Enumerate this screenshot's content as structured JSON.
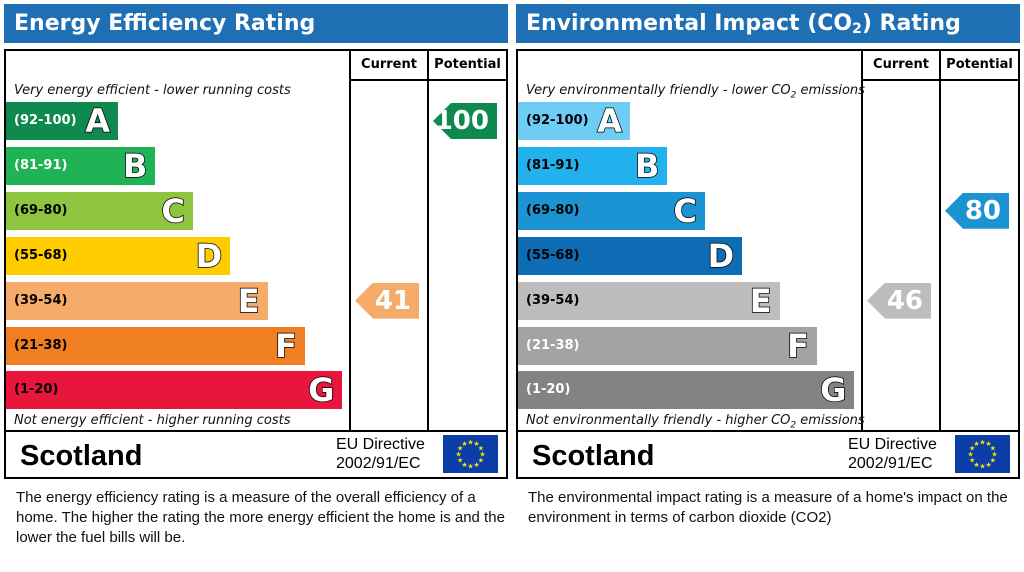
{
  "panels": [
    {
      "title_main": "Energy Efficiency Rating",
      "title_sub": "",
      "title_suffix": "",
      "headers": {
        "current": "Current",
        "potential": "Potential"
      },
      "top_note": "Very energy efficient - lower running costs",
      "bottom_note": "Not energy efficient - higher running costs",
      "country": "Scotland",
      "directive_line1": "EU Directive",
      "directive_line2": "2002/91/EC",
      "description": "The energy efficiency rating is a measure of the overall efficiency of a home.  The higher the rating the more energy efficient the home is and the lower the fuel bills will be."
    },
    {
      "title_main": "Environmental Impact (CO",
      "title_sub": "2",
      "title_suffix": ") Rating",
      "headers": {
        "current": "Current",
        "potential": "Potential"
      },
      "top_note_main": "Very environmentally friendly - lower CO",
      "top_note_sub": "2",
      "top_note_suffix": " emissions",
      "bottom_note_main": "Not environmentally friendly - higher CO",
      "bottom_note_sub": "2",
      "bottom_note_suffix": " emissions",
      "country": "Scotland",
      "directive_line1": "EU Directive",
      "directive_line2": "2002/91/EC",
      "description": "The environmental impact rating is a measure of a home's impact on the environment in terms of carbon dioxide (CO2)"
    }
  ],
  "chart_data": [
    {
      "type": "bar",
      "title": "Energy Efficiency Rating",
      "bands": [
        {
          "range": "(92-100)",
          "letter": "A",
          "min": 92,
          "max": 100,
          "color": "#0f8a4f",
          "text_color": "#ffffff"
        },
        {
          "range": "(81-91)",
          "letter": "B",
          "min": 81,
          "max": 91,
          "color": "#1fb355",
          "text_color": "#ffffff"
        },
        {
          "range": "(69-80)",
          "letter": "C",
          "min": 69,
          "max": 80,
          "color": "#8dc540",
          "text_color": "#000000"
        },
        {
          "range": "(55-68)",
          "letter": "D",
          "min": 55,
          "max": 68,
          "color": "#ffcc00",
          "text_color": "#000000"
        },
        {
          "range": "(39-54)",
          "letter": "E",
          "min": 39,
          "max": 54,
          "color": "#f5ab6a",
          "text_color": "#000000"
        },
        {
          "range": "(21-38)",
          "letter": "F",
          "min": 21,
          "max": 38,
          "color": "#f07f22",
          "text_color": "#000000"
        },
        {
          "range": "(1-20)",
          "letter": "G",
          "min": 1,
          "max": 20,
          "color": "#e8163b",
          "text_color": "#000000"
        }
      ],
      "current": {
        "value": 41,
        "band": "E",
        "color": "#f5ab6a"
      },
      "potential": {
        "value": 100,
        "band": "A",
        "color": "#0f8a4f"
      }
    },
    {
      "type": "bar",
      "title": "Environmental Impact (CO2) Rating",
      "bands": [
        {
          "range": "(92-100)",
          "letter": "A",
          "min": 92,
          "max": 100,
          "color": "#6fcdf5",
          "text_color": "#000000"
        },
        {
          "range": "(81-91)",
          "letter": "B",
          "min": 81,
          "max": 91,
          "color": "#22b1ec",
          "text_color": "#000000"
        },
        {
          "range": "(69-80)",
          "letter": "C",
          "min": 69,
          "max": 80,
          "color": "#1c93d2",
          "text_color": "#000000"
        },
        {
          "range": "(55-68)",
          "letter": "D",
          "min": 55,
          "max": 68,
          "color": "#0d6cb3",
          "text_color": "#000000"
        },
        {
          "range": "(39-54)",
          "letter": "E",
          "min": 39,
          "max": 54,
          "color": "#bdbdbd",
          "text_color": "#000000"
        },
        {
          "range": "(21-38)",
          "letter": "F",
          "min": 21,
          "max": 38,
          "color": "#a3a3a3",
          "text_color": "#ffffff"
        },
        {
          "range": "(1-20)",
          "letter": "G",
          "min": 1,
          "max": 20,
          "color": "#838383",
          "text_color": "#ffffff"
        }
      ],
      "current": {
        "value": 46,
        "band": "E",
        "color": "#bdbdbd"
      },
      "potential": {
        "value": 80,
        "band": "C",
        "color": "#1c93d2"
      }
    }
  ]
}
